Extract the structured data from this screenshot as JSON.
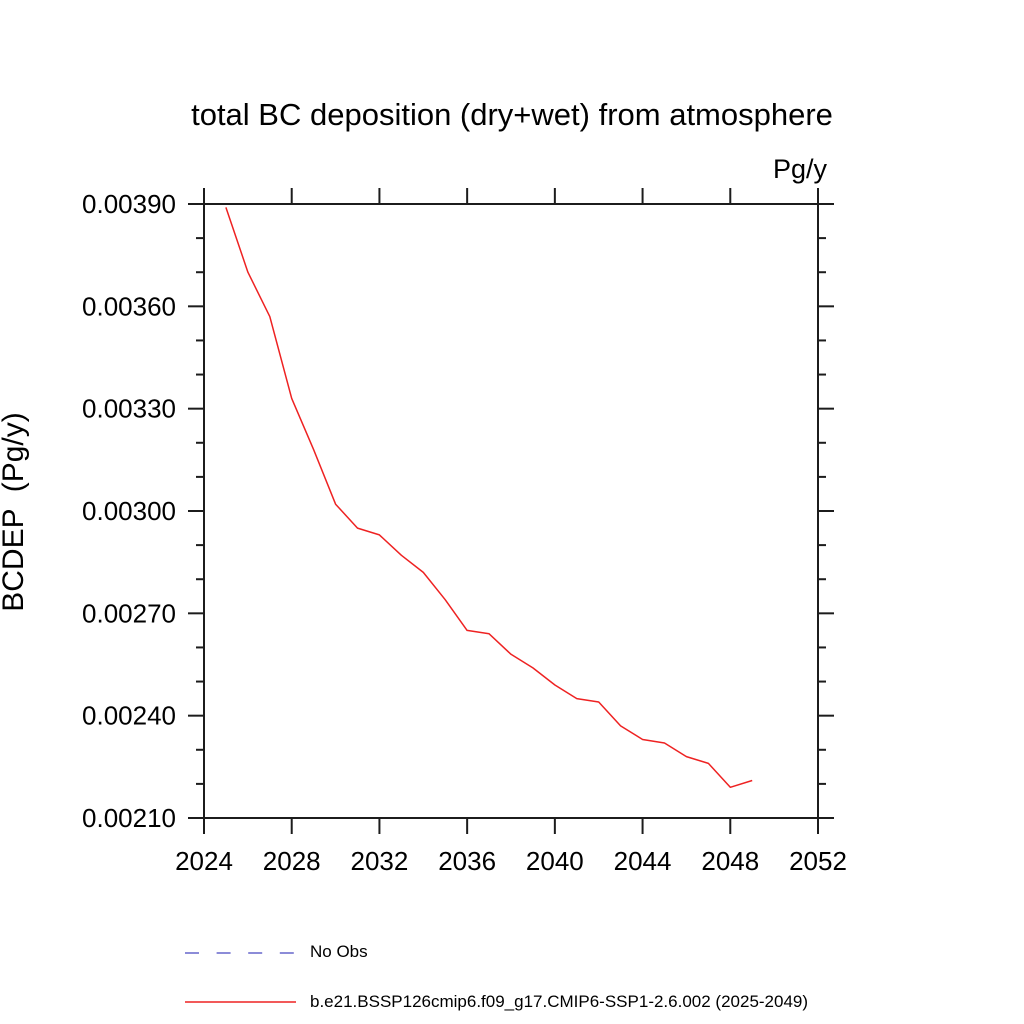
{
  "title": "total BC deposition (dry+wet) from atmosphere",
  "unit_label": "Pg/y",
  "colors": {
    "background": "#ffffff",
    "axis": "#1c1c1c",
    "text": "#000000",
    "no_obs_line": "#6666cc",
    "model_line": "#ee2222"
  },
  "chart_data": {
    "type": "line",
    "title": "total BC deposition (dry+wet) from atmosphere",
    "xlabel": "",
    "ylabel": "BCDEP  (Pg/y)",
    "unit_label": "Pg/y",
    "xlim": [
      2024,
      2052
    ],
    "ylim": [
      0.0021,
      0.0039
    ],
    "grid": false,
    "legend_position": "below-left",
    "x_major_ticks": [
      2024,
      2028,
      2032,
      2036,
      2040,
      2044,
      2048,
      2052
    ],
    "x_tick_labels": [
      "2024",
      "2028",
      "2032",
      "2036",
      "2040",
      "2044",
      "2048",
      "2052"
    ],
    "y_major_ticks": [
      0.0021,
      0.0024,
      0.0027,
      0.003,
      0.0033,
      0.0036,
      0.0039
    ],
    "y_tick_labels": [
      "0.00210",
      "0.00240",
      "0.00270",
      "0.00300",
      "0.00330",
      "0.00360",
      "0.00390"
    ],
    "y_minor_step": 0.0001,
    "x": [
      2025,
      2026,
      2027,
      2028,
      2029,
      2030,
      2031,
      2032,
      2033,
      2034,
      2035,
      2036,
      2037,
      2038,
      2039,
      2040,
      2041,
      2042,
      2043,
      2044,
      2045,
      2046,
      2047,
      2048,
      2049
    ],
    "series": [
      {
        "name": "No Obs",
        "color": "#6666cc",
        "style": "dashed",
        "values": null
      },
      {
        "name": "b.e21.BSSP126cmip6.f09_g17.CMIP6-SSP1-2.6.002 (2025-2049)",
        "color": "#ee2222",
        "style": "solid",
        "values": [
          0.00389,
          0.0037,
          0.00357,
          0.00333,
          0.00318,
          0.00302,
          0.00295,
          0.00293,
          0.00287,
          0.00282,
          0.00274,
          0.00265,
          0.00264,
          0.00258,
          0.00254,
          0.00249,
          0.00245,
          0.00244,
          0.00237,
          0.00233,
          0.00232,
          0.00228,
          0.00226,
          0.00219,
          0.00221
        ]
      }
    ]
  },
  "legend": {
    "items": [
      {
        "label": "No Obs",
        "color": "#6666cc",
        "style": "dashed"
      },
      {
        "label": "b.e21.BSSP126cmip6.f09_g17.CMIP6-SSP1-2.6.002 (2025-2049)",
        "color": "#ee2222",
        "style": "solid"
      }
    ]
  }
}
